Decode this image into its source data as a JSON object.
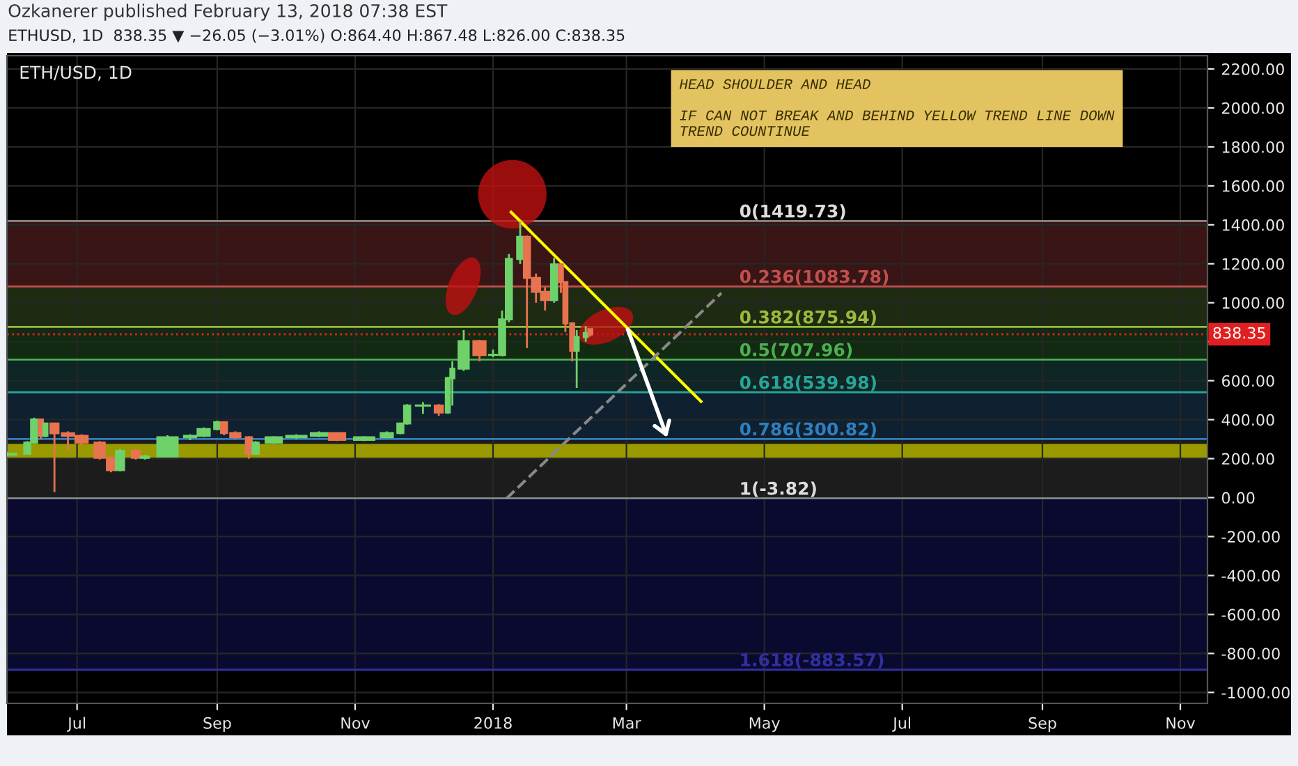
{
  "chart_data": {
    "type": "candlestick",
    "title": "ETH/USD, 1D",
    "annotations": [
      "Ozkanerer published February 13, 2018 07:38 EST",
      "ETHUSD, 1D  838.35 ▼ −26.05 (−3.01%) O:864.40 H:867.48 L:826.00 C:838.35",
      "HEAD SHOULDER AND HEAD\n\nIF CAN NOT BREAK AND BEHIND YELLOW TREND LINE DOWN\nTREND COUNTINUE"
    ],
    "x": [
      "2017-05-31",
      "2017-06-09",
      "2017-06-12",
      "2017-06-15",
      "2017-06-17",
      "2017-06-21",
      "2017-06-27",
      "2017-07-03",
      "2017-07-11",
      "2017-07-16",
      "2017-07-20",
      "2017-07-27",
      "2017-07-31",
      "2017-08-10",
      "2017-08-20",
      "2017-08-26",
      "2017-09-01",
      "2017-09-04",
      "2017-09-09",
      "2017-09-15",
      "2017-09-18",
      "2017-09-26",
      "2017-10-06",
      "2017-10-16",
      "2017-10-24",
      "2017-11-05",
      "2017-11-15",
      "2017-11-21",
      "2017-11-24",
      "2017-12-01",
      "2017-12-08",
      "2017-12-12",
      "2017-12-14",
      "2017-12-19",
      "2017-12-26",
      "2018-01-01",
      "2018-01-05",
      "2018-01-08",
      "2018-01-13",
      "2018-01-16",
      "2018-01-20",
      "2018-01-24",
      "2018-01-28",
      "2018-01-31",
      "2018-02-02",
      "2018-02-05",
      "2018-02-07",
      "2018-02-11",
      "2018-02-13"
    ],
    "ohlc": [
      [
        220,
        235,
        210,
        225
      ],
      [
        225,
        290,
        220,
        282
      ],
      [
        282,
        410,
        275,
        401
      ],
      [
        401,
        405,
        300,
        317
      ],
      [
        317,
        385,
        310,
        380
      ],
      [
        380,
        385,
        28,
        330
      ],
      [
        330,
        340,
        246,
        317
      ],
      [
        317,
        325,
        270,
        282
      ],
      [
        282,
        290,
        195,
        204
      ],
      [
        204,
        215,
        130,
        141
      ],
      [
        141,
        250,
        135,
        240
      ],
      [
        240,
        250,
        195,
        204
      ],
      [
        204,
        220,
        195,
        211
      ],
      [
        211,
        320,
        205,
        310
      ],
      [
        310,
        325,
        295,
        317
      ],
      [
        317,
        360,
        310,
        352
      ],
      [
        352,
        395,
        345,
        387
      ],
      [
        387,
        390,
        320,
        331
      ],
      [
        331,
        340,
        300,
        310
      ],
      [
        310,
        315,
        200,
        225
      ],
      [
        225,
        290,
        220,
        282
      ],
      [
        282,
        315,
        275,
        310
      ],
      [
        310,
        325,
        300,
        317
      ],
      [
        317,
        340,
        310,
        331
      ],
      [
        331,
        335,
        290,
        296
      ],
      [
        296,
        315,
        290,
        310
      ],
      [
        310,
        340,
        305,
        331
      ],
      [
        331,
        385,
        325,
        380
      ],
      [
        380,
        480,
        375,
        472
      ],
      [
        472,
        490,
        430,
        472
      ],
      [
        472,
        480,
        420,
        437
      ],
      [
        437,
        620,
        430,
        613
      ],
      [
        613,
        700,
        472,
        662
      ],
      [
        662,
        860,
        650,
        803
      ],
      [
        803,
        810,
        700,
        732
      ],
      [
        732,
        760,
        720,
        732
      ],
      [
        732,
        960,
        725,
        915
      ],
      [
        915,
        1250,
        900,
        1225
      ],
      [
        1225,
        1419.73,
        1200,
        1338
      ],
      [
        1338,
        1345,
        767,
        1127
      ],
      [
        1127,
        1150,
        1000,
        1056
      ],
      [
        1056,
        1080,
        960,
        1014
      ],
      [
        1014,
        1230,
        1000,
        1197
      ],
      [
        1197,
        1200,
        1050,
        1106
      ],
      [
        1106,
        1110,
        850,
        894
      ],
      [
        894,
        900,
        700,
        754
      ],
      [
        754,
        860,
        563,
        824
      ],
      [
        824,
        880,
        800,
        845
      ],
      [
        864.4,
        867.48,
        826.0,
        838.35
      ]
    ],
    "series": [
      {
        "type": "line",
        "color": "#ffff00",
        "x": [
          "2018-01-09",
          "2018-04-03"
        ],
        "values": [
          1465,
          493
        ]
      },
      {
        "type": "line",
        "color": "#888888",
        "line_style": "dashed",
        "x": [
          "2018-01-07",
          "2018-04-12"
        ],
        "values": [
          -4,
          1050
        ]
      }
    ],
    "ref_lines": [
      {
        "axis": "y",
        "value": 1419.73,
        "label": "0(1419.73)",
        "color": "#888888"
      },
      {
        "axis": "y",
        "value": 1083.78,
        "label": "0.236(1083.78)",
        "color": "#c0504d"
      },
      {
        "axis": "y",
        "value": 875.94,
        "label": "0.382(875.94)",
        "color": "#9bbb3b"
      },
      {
        "axis": "y",
        "value": 707.96,
        "label": "0.5(707.96)",
        "color": "#4caf50"
      },
      {
        "axis": "y",
        "value": 539.98,
        "label": "0.618(539.98)",
        "color": "#26a69a"
      },
      {
        "axis": "y",
        "value": 300.82,
        "label": "0.786(300.82)",
        "color": "#2f7fbf"
      },
      {
        "axis": "y",
        "value": -3.82,
        "label": "1(-3.82)",
        "color": "#888888"
      },
      {
        "axis": "y",
        "value": -883.57,
        "label": "1.618(-883.57)",
        "color": "#3030a0"
      },
      {
        "axis": "y",
        "value": 838.35,
        "label": "838.35",
        "color": "#e02020",
        "line_style": "dotted"
      }
    ],
    "bands": [
      {
        "axis": "y",
        "from": 1083.78,
        "to": 1419.73,
        "color": "#3a1515"
      },
      {
        "axis": "y",
        "from": 875.94,
        "to": 1083.78,
        "color": "#1e2a12"
      },
      {
        "axis": "y",
        "from": 707.96,
        "to": 875.94,
        "color": "#122a12"
      },
      {
        "axis": "y",
        "from": 539.98,
        "to": 707.96,
        "color": "#0f2626"
      },
      {
        "axis": "y",
        "from": 300.82,
        "to": 539.98,
        "color": "#0f2030"
      },
      {
        "axis": "y",
        "from": -3.82,
        "to": 300.82,
        "color": "#1c1c1c"
      },
      {
        "axis": "y",
        "from": -883.57,
        "to": -3.82,
        "color": "#0a0a30"
      },
      {
        "axis": "y",
        "from": 204,
        "to": 275,
        "color": "#9a9a00"
      }
    ],
    "xlim": [
      "2017-05-31",
      "2018-11-13"
    ],
    "xticks": [
      {
        "value": "2017-07-01",
        "label": "Jul"
      },
      {
        "value": "2017-09-01",
        "label": "Sep"
      },
      {
        "value": "2017-11-01",
        "label": "Nov"
      },
      {
        "value": "2018-01-01",
        "label": "2018"
      },
      {
        "value": "2018-03-01",
        "label": "Mar"
      },
      {
        "value": "2018-05-01",
        "label": "May"
      },
      {
        "value": "2018-07-01",
        "label": "Jul"
      },
      {
        "value": "2018-09-01",
        "label": "Sep"
      },
      {
        "value": "2018-11-01",
        "label": "Nov"
      }
    ],
    "ylim": [
      -1056,
      2268
    ],
    "yticks": [
      {
        "value": -1000,
        "label": "-1000.00"
      },
      {
        "value": -800,
        "label": "-800.00"
      },
      {
        "value": -600,
        "label": "-600.00"
      },
      {
        "value": -400,
        "label": "-400.00"
      },
      {
        "value": -200,
        "label": "-200.00"
      },
      {
        "value": 0,
        "label": "0.00"
      },
      {
        "value": 200,
        "label": "200.00"
      },
      {
        "value": 400,
        "label": "400.00"
      },
      {
        "value": 600,
        "label": "600.00"
      },
      {
        "value": 800,
        "label": null
      },
      {
        "value": 1000,
        "label": "1000.00"
      },
      {
        "value": 1200,
        "label": "1200.00"
      },
      {
        "value": 1400,
        "label": "1400.00"
      },
      {
        "value": 1600,
        "label": "1600.00"
      },
      {
        "value": 1800,
        "label": "1800.00"
      },
      {
        "value": 2000,
        "label": "2000.00"
      },
      {
        "value": 2200,
        "label": "2200.00"
      }
    ],
    "grid": true
  }
}
